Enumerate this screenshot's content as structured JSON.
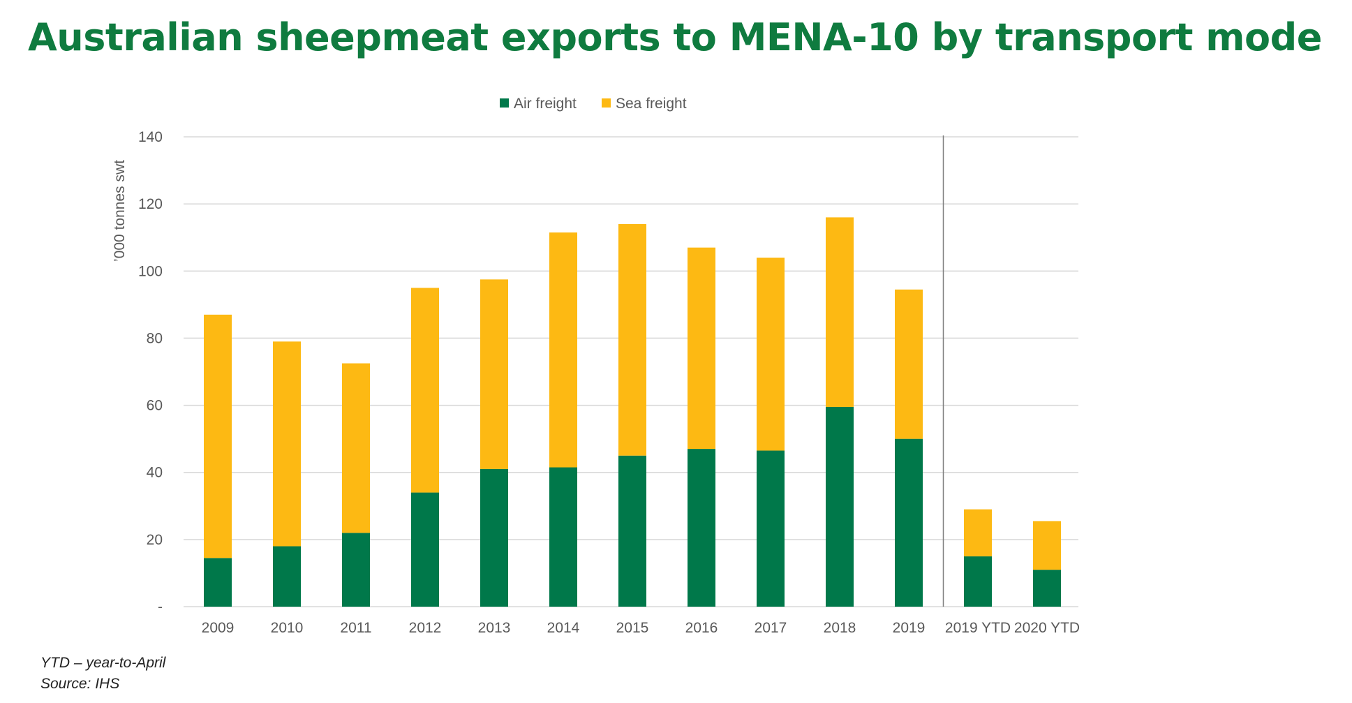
{
  "title": "Australian sheepmeat exports to MENA-10 by transport mode",
  "notes": {
    "ytd": "YTD – year-to-April",
    "source": "Source: IHS"
  },
  "colors": {
    "air": "#00784a",
    "sea": "#fdb913",
    "grid": "#d9d9d9",
    "axis_text": "#595959",
    "title": "#0f7b3f"
  },
  "chart_data": {
    "type": "bar",
    "stacked": true,
    "categories": [
      "2009",
      "2010",
      "2011",
      "2012",
      "2013",
      "2014",
      "2015",
      "2016",
      "2017",
      "2018",
      "2019",
      "2019 YTD",
      "2020 YTD"
    ],
    "series": [
      {
        "name": "Air freight",
        "values": [
          14.5,
          18,
          22,
          34,
          41,
          41.5,
          45,
          47,
          46.5,
          59.5,
          50,
          15,
          11
        ]
      },
      {
        "name": "Sea freight",
        "values": [
          72.5,
          61,
          50.5,
          61,
          56.5,
          70,
          69,
          60,
          57.5,
          56.5,
          44.5,
          14,
          14.5
        ]
      }
    ],
    "ylabel": "’000 tonnes swt",
    "xlabel": "",
    "ylim": [
      0,
      140
    ],
    "yticks": [
      "-",
      "20",
      "40",
      "60",
      "80",
      "100",
      "120",
      "140"
    ],
    "grid": true,
    "legend": "top-center",
    "separator_after": "2019"
  }
}
